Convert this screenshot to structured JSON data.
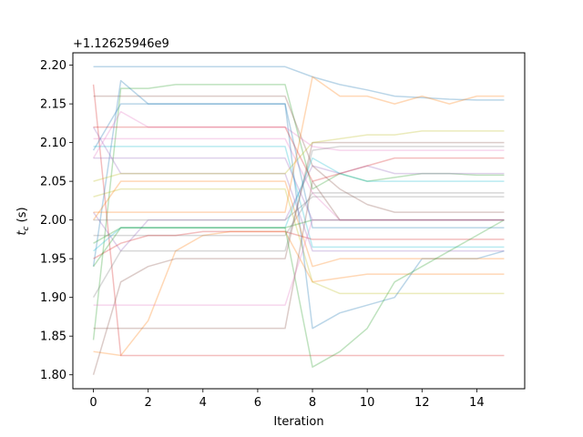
{
  "chart_data": {
    "type": "line",
    "xlabel": "Iteration",
    "ylabel_main": "t",
    "ylabel_sub": "c",
    "ylabel_unit": " (s)",
    "offset_text": "+1.12625946e9",
    "xlim": [
      -0.75,
      15.75
    ],
    "ylim": [
      1.782,
      2.216
    ],
    "x_ticks": [
      0,
      2,
      4,
      6,
      8,
      10,
      12,
      14
    ],
    "y_ticks": [
      1.8,
      1.85,
      1.9,
      1.95,
      2.0,
      2.05,
      2.1,
      2.15,
      2.2
    ],
    "y_tick_labels": [
      "1.80",
      "1.85",
      "1.90",
      "1.95",
      "2.00",
      "2.05",
      "2.10",
      "2.15",
      "2.20"
    ],
    "x": [
      0,
      1,
      2,
      3,
      4,
      5,
      6,
      7,
      8,
      9,
      10,
      11,
      12,
      13,
      14,
      15
    ],
    "line_alpha": 0.3,
    "colors": [
      "#1f77b4",
      "#ff7f0e",
      "#2ca02c",
      "#d62728",
      "#9467bd",
      "#8c564b",
      "#e377c2",
      "#7f7f7f",
      "#bcbd22",
      "#17becf"
    ],
    "series": [
      {
        "values": [
          2.198,
          2.198,
          2.198,
          2.198,
          2.198,
          2.198,
          2.198,
          2.198,
          2.185,
          2.175,
          2.168,
          2.16,
          2.158,
          2.156,
          2.155,
          2.155
        ]
      },
      {
        "values": [
          1.83,
          1.825,
          1.87,
          1.96,
          1.98,
          1.985,
          1.985,
          1.985,
          1.92,
          1.925,
          1.93,
          1.93,
          1.93,
          1.93,
          1.93,
          1.93
        ]
      },
      {
        "values": [
          1.845,
          2.17,
          2.17,
          2.175,
          2.175,
          2.175,
          2.175,
          2.175,
          2.04,
          2.06,
          2.05,
          2.055,
          2.06,
          2.06,
          2.058,
          2.058
        ]
      },
      {
        "values": [
          2.175,
          1.825,
          1.825,
          1.825,
          1.825,
          1.825,
          1.825,
          1.825,
          1.825,
          1.825,
          1.825,
          1.825,
          1.825,
          1.825,
          1.825,
          1.825
        ]
      },
      {
        "values": [
          2.01,
          1.96,
          2.0,
          2.0,
          2.0,
          2.0,
          2.0,
          2.0,
          2.07,
          2.06,
          2.07,
          2.06,
          2.06,
          2.06,
          2.06,
          2.06
        ]
      },
      {
        "values": [
          2.16,
          2.16,
          2.16,
          2.16,
          2.16,
          2.16,
          2.16,
          2.16,
          2.07,
          2.04,
          2.02,
          2.01,
          2.01,
          2.01,
          2.01,
          2.01
        ]
      },
      {
        "values": [
          2.105,
          2.105,
          2.105,
          2.105,
          2.105,
          2.105,
          2.105,
          2.105,
          2.035,
          2.0,
          2.0,
          2.0,
          2.0,
          2.0,
          2.0,
          2.0
        ]
      },
      {
        "values": [
          1.98,
          1.98,
          1.98,
          1.98,
          1.98,
          1.98,
          1.98,
          1.98,
          2.035,
          2.035,
          2.035,
          2.035,
          2.035,
          2.035,
          2.035,
          2.035
        ]
      },
      {
        "values": [
          2.03,
          2.04,
          2.04,
          2.04,
          2.04,
          2.04,
          2.04,
          2.04,
          1.92,
          1.905,
          1.905,
          1.905,
          1.905,
          1.905,
          1.905,
          1.905
        ]
      },
      {
        "values": [
          2.095,
          2.095,
          2.095,
          2.095,
          2.095,
          2.095,
          2.095,
          2.095,
          1.965,
          1.965,
          1.965,
          1.965,
          1.965,
          1.965,
          1.965,
          1.965
        ]
      },
      {
        "values": [
          1.94,
          2.18,
          2.15,
          2.15,
          2.15,
          2.15,
          2.15,
          2.15,
          1.86,
          1.88,
          1.89,
          1.9,
          1.95,
          1.95,
          1.95,
          1.96
        ]
      },
      {
        "values": [
          2.0,
          2.05,
          2.05,
          2.05,
          2.05,
          2.05,
          2.05,
          2.05,
          1.94,
          1.95,
          1.95,
          1.95,
          1.95,
          1.95,
          1.95,
          1.95
        ]
      },
      {
        "values": [
          1.97,
          1.99,
          1.99,
          1.99,
          1.99,
          1.99,
          1.99,
          1.99,
          2.0,
          2.0,
          2.0,
          2.0,
          2.0,
          2.0,
          2.0,
          2.0
        ]
      },
      {
        "values": [
          1.95,
          1.97,
          1.98,
          1.98,
          1.985,
          1.985,
          1.985,
          1.985,
          1.975,
          1.975,
          1.975,
          1.975,
          1.975,
          1.975,
          1.975,
          1.975
        ]
      },
      {
        "values": [
          2.12,
          2.06,
          2.06,
          2.06,
          2.06,
          2.06,
          2.06,
          2.06,
          1.96,
          1.96,
          1.96,
          1.96,
          1.96,
          1.96,
          1.96,
          1.96
        ]
      },
      {
        "values": [
          1.8,
          1.92,
          1.94,
          1.95,
          1.95,
          1.95,
          1.95,
          1.95,
          2.1,
          2.1,
          2.1,
          2.1,
          2.1,
          2.1,
          2.1,
          2.1
        ]
      },
      {
        "values": [
          2.08,
          2.14,
          2.12,
          2.12,
          2.12,
          2.12,
          2.12,
          2.12,
          2.095,
          2.09,
          2.09,
          2.09,
          2.09,
          2.09,
          2.09,
          2.09
        ]
      },
      {
        "values": [
          1.9,
          1.96,
          1.96,
          1.96,
          1.96,
          1.96,
          1.96,
          1.96,
          2.09,
          2.095,
          2.095,
          2.095,
          2.095,
          2.095,
          2.095,
          2.095
        ]
      },
      {
        "values": [
          2.05,
          2.06,
          2.06,
          2.06,
          2.06,
          2.06,
          2.06,
          2.06,
          2.1,
          2.105,
          2.11,
          2.11,
          2.115,
          2.115,
          2.115,
          2.115
        ]
      },
      {
        "values": [
          1.96,
          1.99,
          1.99,
          1.99,
          1.99,
          1.99,
          1.99,
          1.99,
          2.08,
          2.06,
          2.05,
          2.05,
          2.05,
          2.05,
          2.05,
          2.05
        ]
      },
      {
        "values": [
          2.09,
          2.15,
          2.15,
          2.15,
          2.15,
          2.15,
          2.15,
          2.15,
          1.99,
          1.99,
          1.99,
          1.99,
          1.99,
          1.99,
          1.99,
          1.99
        ]
      },
      {
        "values": [
          2.01,
          2.01,
          2.01,
          2.01,
          2.01,
          2.01,
          2.01,
          2.01,
          2.185,
          2.16,
          2.16,
          2.15,
          2.16,
          2.15,
          2.16,
          2.16
        ]
      },
      {
        "values": [
          1.94,
          1.99,
          1.99,
          1.99,
          1.99,
          1.99,
          1.99,
          1.99,
          1.81,
          1.83,
          1.86,
          1.92,
          1.94,
          1.96,
          1.98,
          2.0
        ]
      },
      {
        "values": [
          2.12,
          2.12,
          2.12,
          2.12,
          2.12,
          2.12,
          2.12,
          2.12,
          2.05,
          2.06,
          2.07,
          2.08,
          2.08,
          2.08,
          2.08,
          2.08
        ]
      },
      {
        "values": [
          2.08,
          2.08,
          2.08,
          2.08,
          2.08,
          2.08,
          2.08,
          2.08,
          2.0,
          2.0,
          2.0,
          2.0,
          2.0,
          2.0,
          2.0,
          2.0
        ]
      },
      {
        "values": [
          1.86,
          1.86,
          1.86,
          1.86,
          1.86,
          1.86,
          1.86,
          1.86,
          2.05,
          2.0,
          2.0,
          2.0,
          2.0,
          2.0,
          2.0,
          2.0
        ]
      },
      {
        "values": [
          1.89,
          1.89,
          1.89,
          1.89,
          1.89,
          1.89,
          1.89,
          1.89,
          2.0,
          2.0,
          2.0,
          2.0,
          2.0,
          2.0,
          2.0,
          2.0
        ]
      },
      {
        "values": [
          2.0,
          2.0,
          2.0,
          2.0,
          2.0,
          2.0,
          2.0,
          2.0,
          2.03,
          2.03,
          2.03,
          2.03,
          2.03,
          2.03,
          2.03,
          2.03
        ]
      }
    ]
  }
}
